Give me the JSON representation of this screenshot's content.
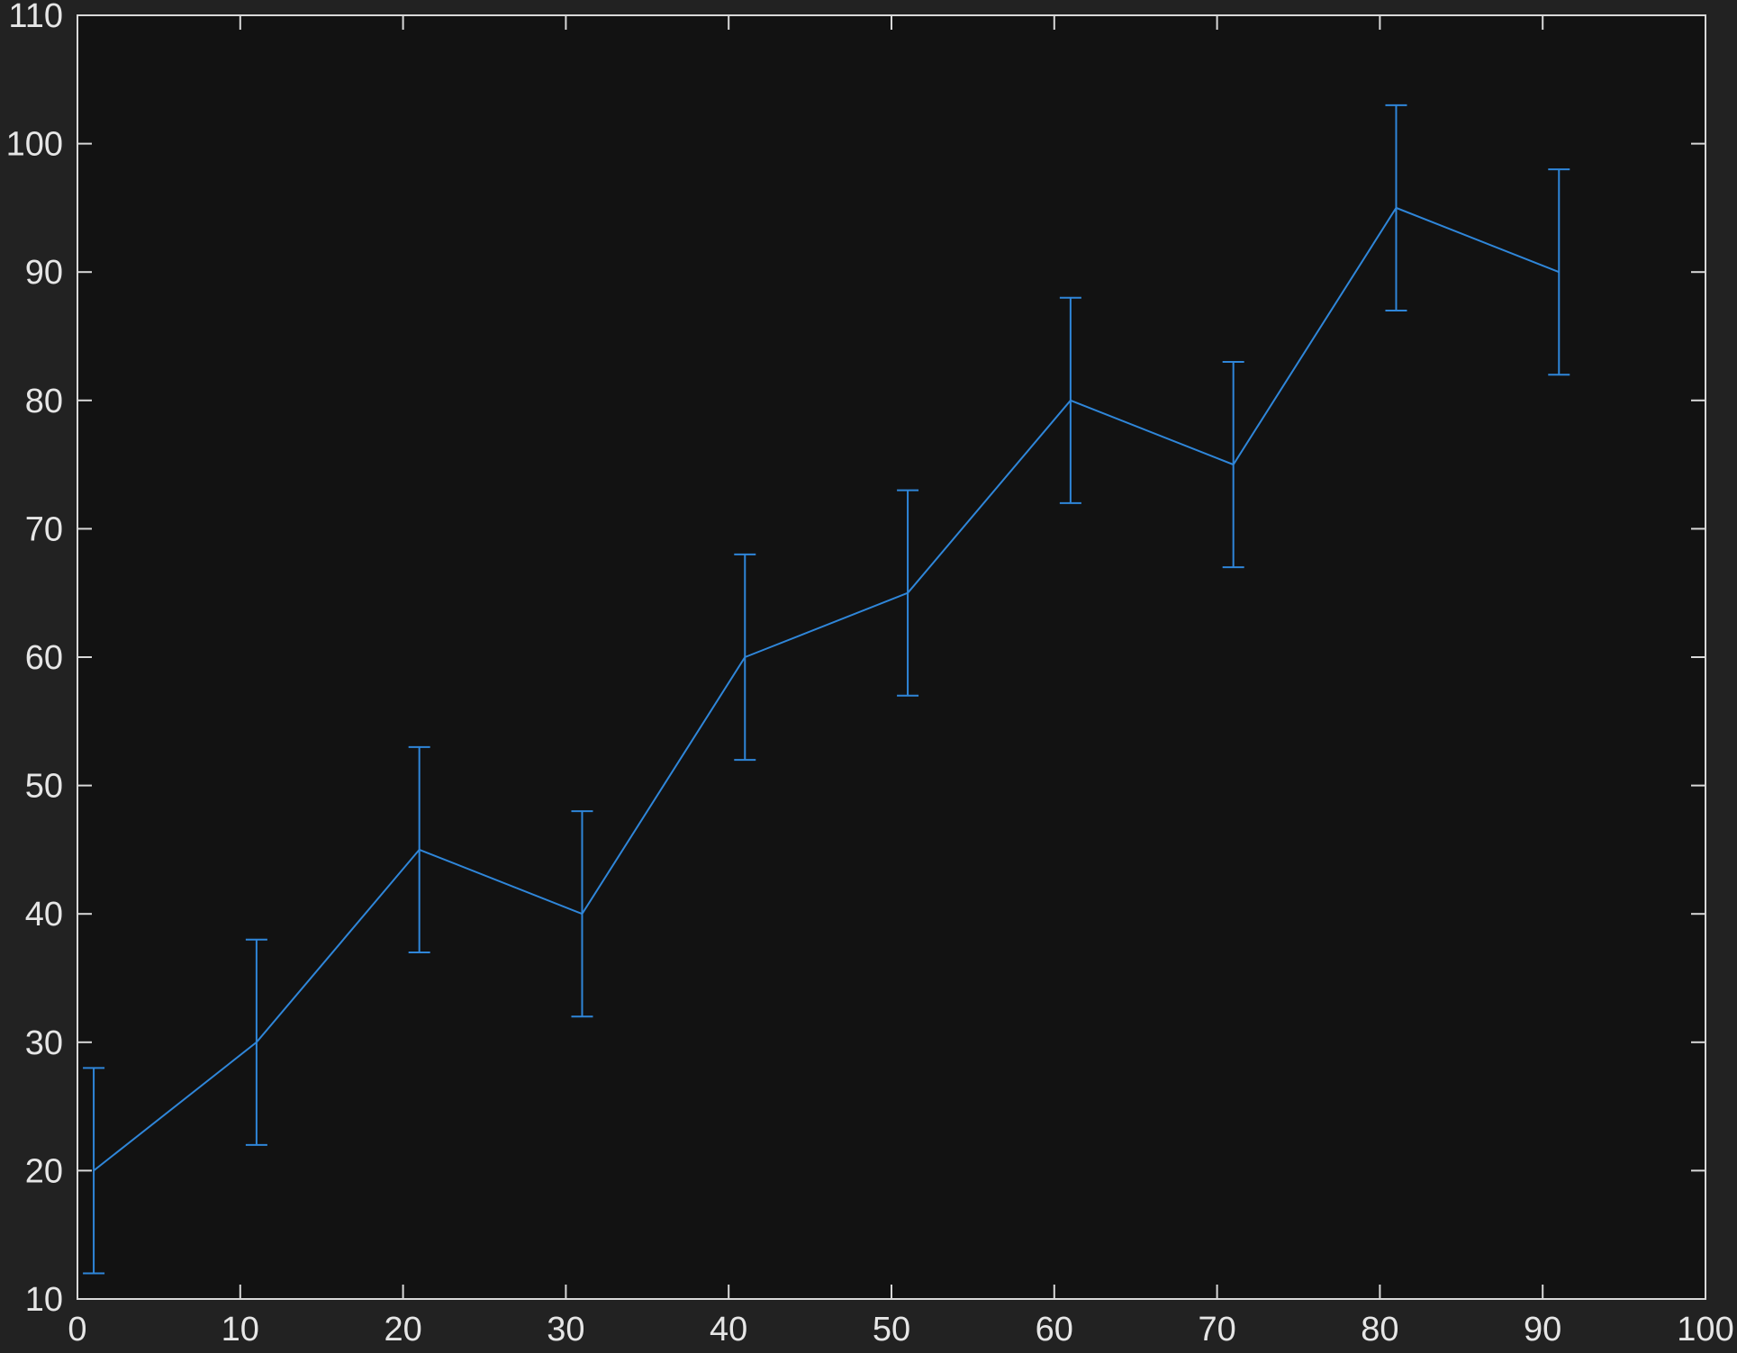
{
  "colors": {
    "figure_bg": "#222222",
    "axes_bg": "#121212",
    "axis": "#d9d9d9",
    "tick_text": "#e6e6e6",
    "series": "#2f86d9"
  },
  "chart_data": {
    "type": "line",
    "title": "",
    "xlabel": "",
    "ylabel": "",
    "xlim": [
      0,
      100
    ],
    "ylim": [
      10,
      110
    ],
    "xticks": [
      0,
      10,
      20,
      30,
      40,
      50,
      60,
      70,
      80,
      90,
      100
    ],
    "yticks": [
      10,
      20,
      30,
      40,
      50,
      60,
      70,
      80,
      90,
      100,
      110
    ],
    "xtick_labels": [
      "0",
      "10",
      "20",
      "30",
      "40",
      "50",
      "60",
      "70",
      "80",
      "90",
      "100"
    ],
    "ytick_labels": [
      "10",
      "20",
      "30",
      "40",
      "50",
      "60",
      "70",
      "80",
      "90",
      "100",
      "110"
    ],
    "grid": false,
    "legend": "none",
    "series": [
      {
        "x": [
          1,
          11,
          21,
          31,
          41,
          51,
          61,
          71,
          81,
          91
        ],
        "y": [
          20,
          30,
          45,
          40,
          60,
          65,
          80,
          75,
          95,
          90
        ],
        "error": [
          8,
          8,
          8,
          8,
          8,
          8,
          8,
          8,
          8,
          8
        ],
        "color": "#2f86d9"
      }
    ]
  }
}
